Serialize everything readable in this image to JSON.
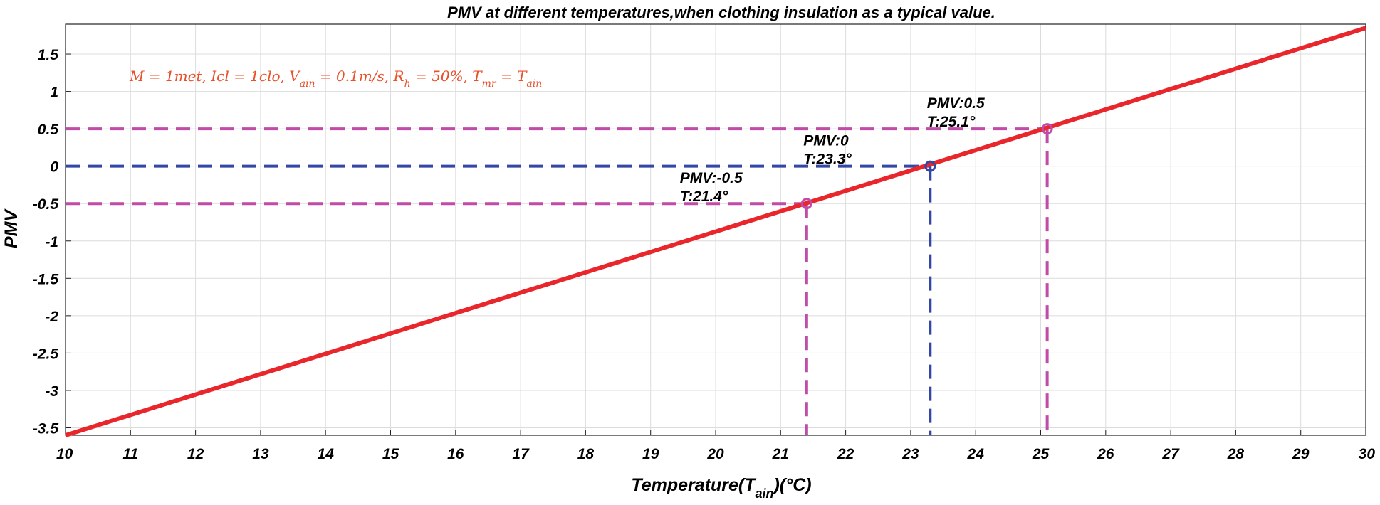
{
  "chart_data": {
    "type": "line",
    "title": "PMV at different temperatures,when clothing insulation as a typical value.",
    "xlabel": {
      "prefix": "Temperature(T",
      "subscript": "ain",
      "suffix": ")(°C)"
    },
    "ylabel": "PMV",
    "xlim": [
      10,
      30
    ],
    "ylim": [
      -3.6,
      1.9
    ],
    "xticks": [
      10,
      11,
      12,
      13,
      14,
      15,
      16,
      17,
      18,
      19,
      20,
      21,
      22,
      23,
      24,
      25,
      26,
      27,
      28,
      29,
      30
    ],
    "yticks": [
      1.5,
      1,
      0.5,
      0,
      -0.5,
      -1,
      -1.5,
      -2,
      -2.5,
      -3,
      -3.5
    ],
    "ytick_labels": [
      "1.5",
      "1",
      "0.5",
      "0",
      "-0.5",
      "-1",
      "-1.5",
      "-2",
      "-2.5",
      "-3",
      "-3.5"
    ],
    "grid": true,
    "series": [
      {
        "name": "PMV",
        "color": "#e8262b",
        "x": [
          10,
          30
        ],
        "y": [
          -3.6,
          1.85
        ]
      }
    ],
    "reference_lines": [
      {
        "pmv": -0.5,
        "temp": 21.4,
        "color": "#c04ca8"
      },
      {
        "pmv": 0,
        "temp": 23.3,
        "color": "#3447a6"
      },
      {
        "pmv": 0.5,
        "temp": 25.1,
        "color": "#c04ca8"
      }
    ],
    "annotations": [
      {
        "line1": "PMV:-0.5",
        "line2": "T:21.4°",
        "x": 19.45,
        "y": -0.5
      },
      {
        "line1": "PMV:0",
        "line2": "T:23.3°",
        "x": 21.35,
        "y": 0
      },
      {
        "line1": "PMV:0.5",
        "line2": "T:25.1°",
        "x": 23.25,
        "y": 0.5
      }
    ],
    "formula": "M = 1met, Icl = 1clo, V_ain = 0.1m/s, R_h = 50%, T_mr = T_ain",
    "formula_color": "#e8502a"
  }
}
